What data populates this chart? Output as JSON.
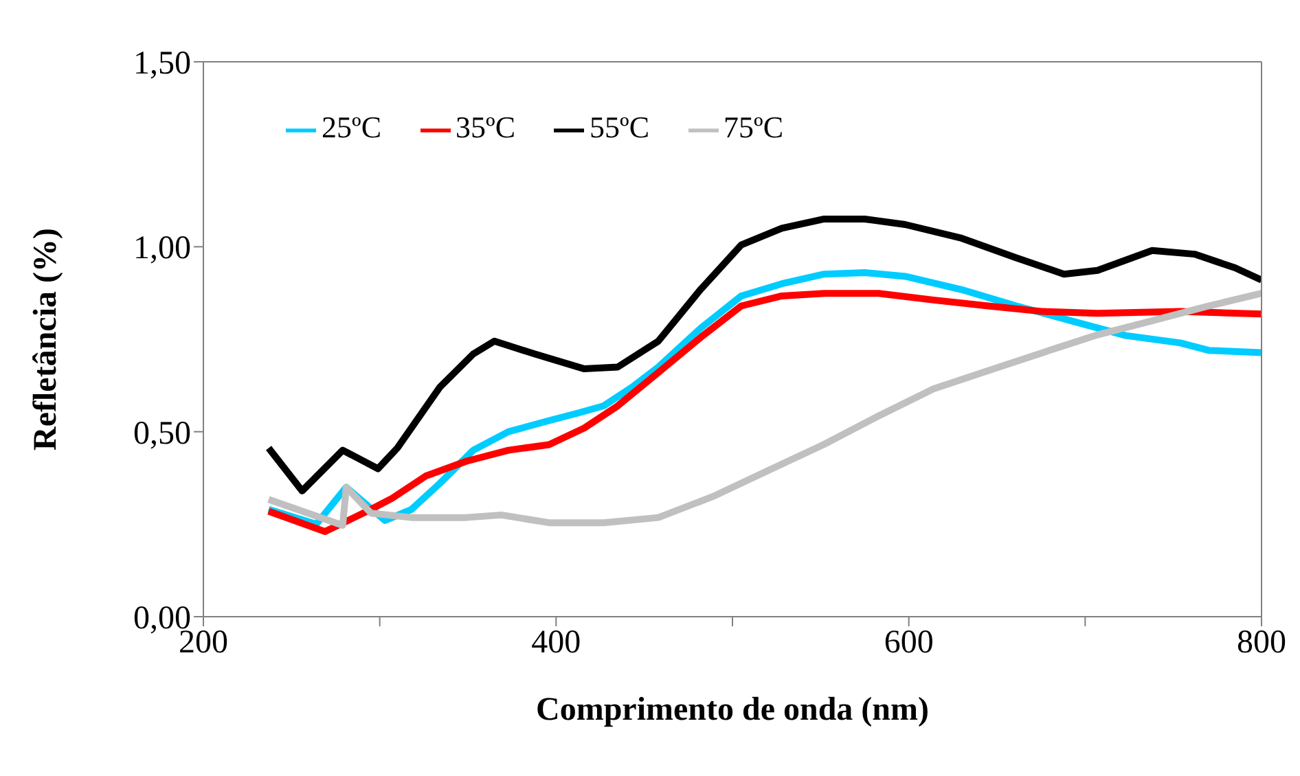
{
  "chart_data": {
    "type": "line",
    "xlabel": "Comprimento de onda (nm)",
    "ylabel": "Refletância (%)",
    "xlim": [
      200,
      800
    ],
    "xticks": [
      200,
      {
        "value": 300,
        "label": null
      },
      400,
      {
        "value": 500,
        "label": null
      },
      600,
      {
        "value": 700,
        "label": null
      },
      800
    ],
    "ylim": [
      0,
      1.5
    ],
    "yticks": [
      {
        "value": 0,
        "label": "0,00"
      },
      {
        "value": 0.5,
        "label": "0,50"
      },
      {
        "value": 1,
        "label": "1,00"
      },
      {
        "value": 1.5,
        "label": "1,50"
      }
    ],
    "legend": "top left",
    "marker": "none",
    "line_style": "solid",
    "series": [
      {
        "name": "25ºC",
        "color": "#00ccff",
        "x": [
          237,
          264,
          281,
          303,
          318,
          334,
          353,
          373,
          396,
          412,
          427,
          443,
          458,
          482,
          505,
          528,
          552,
          575,
          598,
          630,
          661,
          692,
          723,
          754,
          770,
          800
        ],
        "values": [
          0.29,
          0.25,
          0.35,
          0.26,
          0.29,
          0.36,
          0.45,
          0.5,
          0.53,
          0.55,
          0.57,
          0.62,
          0.675,
          0.78,
          0.867,
          0.9,
          0.926,
          0.93,
          0.92,
          0.884,
          0.84,
          0.8,
          0.76,
          0.74,
          0.72,
          0.714
        ]
      },
      {
        "name": "35ºC",
        "color": "#ff0000",
        "x": [
          237,
          269,
          295,
          307,
          326,
          349,
          373,
          396,
          416,
          435,
          458,
          482,
          505,
          528,
          552,
          583,
          614,
          645,
          676,
          707,
          754,
          800
        ],
        "values": [
          0.285,
          0.23,
          0.29,
          0.32,
          0.38,
          0.42,
          0.45,
          0.465,
          0.51,
          0.57,
          0.66,
          0.755,
          0.84,
          0.867,
          0.874,
          0.874,
          0.856,
          0.84,
          0.825,
          0.82,
          0.825,
          0.818
        ]
      },
      {
        "name": "55ºC",
        "color": "#000000",
        "x": [
          237,
          256,
          279,
          299,
          310,
          334,
          353,
          365,
          388,
          416,
          435,
          458,
          482,
          505,
          528,
          552,
          575,
          598,
          630,
          661,
          688,
          707,
          738,
          762,
          785,
          800
        ],
        "values": [
          0.456,
          0.34,
          0.45,
          0.4,
          0.456,
          0.62,
          0.71,
          0.745,
          0.71,
          0.67,
          0.675,
          0.745,
          0.885,
          1.005,
          1.05,
          1.075,
          1.075,
          1.06,
          1.023,
          0.97,
          0.926,
          0.936,
          0.99,
          0.98,
          0.943,
          0.91
        ]
      },
      {
        "name": "75ºC",
        "color": "#c0c0c0",
        "x": [
          237,
          279,
          281,
          295,
          318,
          349,
          369,
          396,
          427,
          458,
          490,
          521,
          552,
          583,
          614,
          645,
          676,
          707,
          738,
          770,
          800
        ],
        "values": [
          0.317,
          0.247,
          0.35,
          0.28,
          0.268,
          0.268,
          0.275,
          0.254,
          0.254,
          0.268,
          0.327,
          0.397,
          0.466,
          0.543,
          0.616,
          0.665,
          0.714,
          0.762,
          0.8,
          0.84,
          0.874
        ]
      }
    ]
  }
}
